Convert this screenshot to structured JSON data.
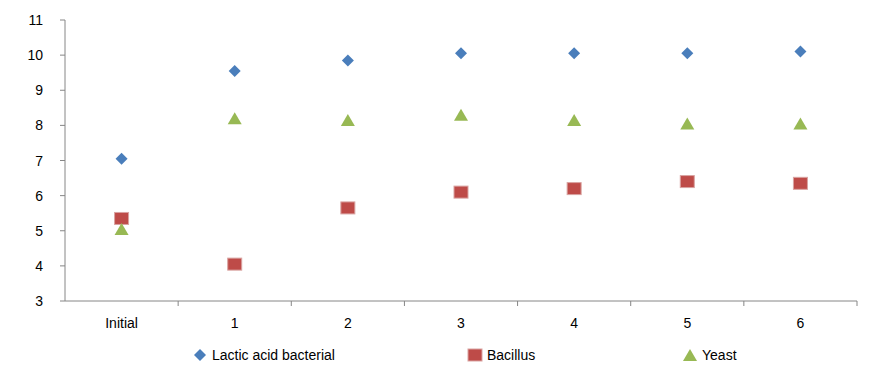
{
  "chart_data": {
    "type": "scatter",
    "categories": [
      "Initial",
      "1",
      "2",
      "3",
      "4",
      "5",
      "6"
    ],
    "series": [
      {
        "name": "Lactic acid bacterial",
        "color": "#4a7ebb",
        "marker": "diamond",
        "values": [
          7.05,
          9.55,
          9.85,
          10.05,
          10.05,
          10.05,
          10.1
        ]
      },
      {
        "name": "Bacillus",
        "color": "#be4b48",
        "marker": "square",
        "values": [
          5.35,
          4.05,
          5.65,
          6.1,
          6.2,
          6.4,
          6.35
        ]
      },
      {
        "name": "Yeast",
        "color": "#98b954",
        "marker": "triangle",
        "values": [
          5.05,
          8.2,
          8.15,
          8.3,
          8.15,
          8.05,
          8.05
        ]
      }
    ],
    "ylim": [
      3,
      11
    ],
    "yticks": [
      3,
      4,
      5,
      6,
      7,
      8,
      9,
      10,
      11
    ],
    "grid": false,
    "legend": "bottom"
  }
}
